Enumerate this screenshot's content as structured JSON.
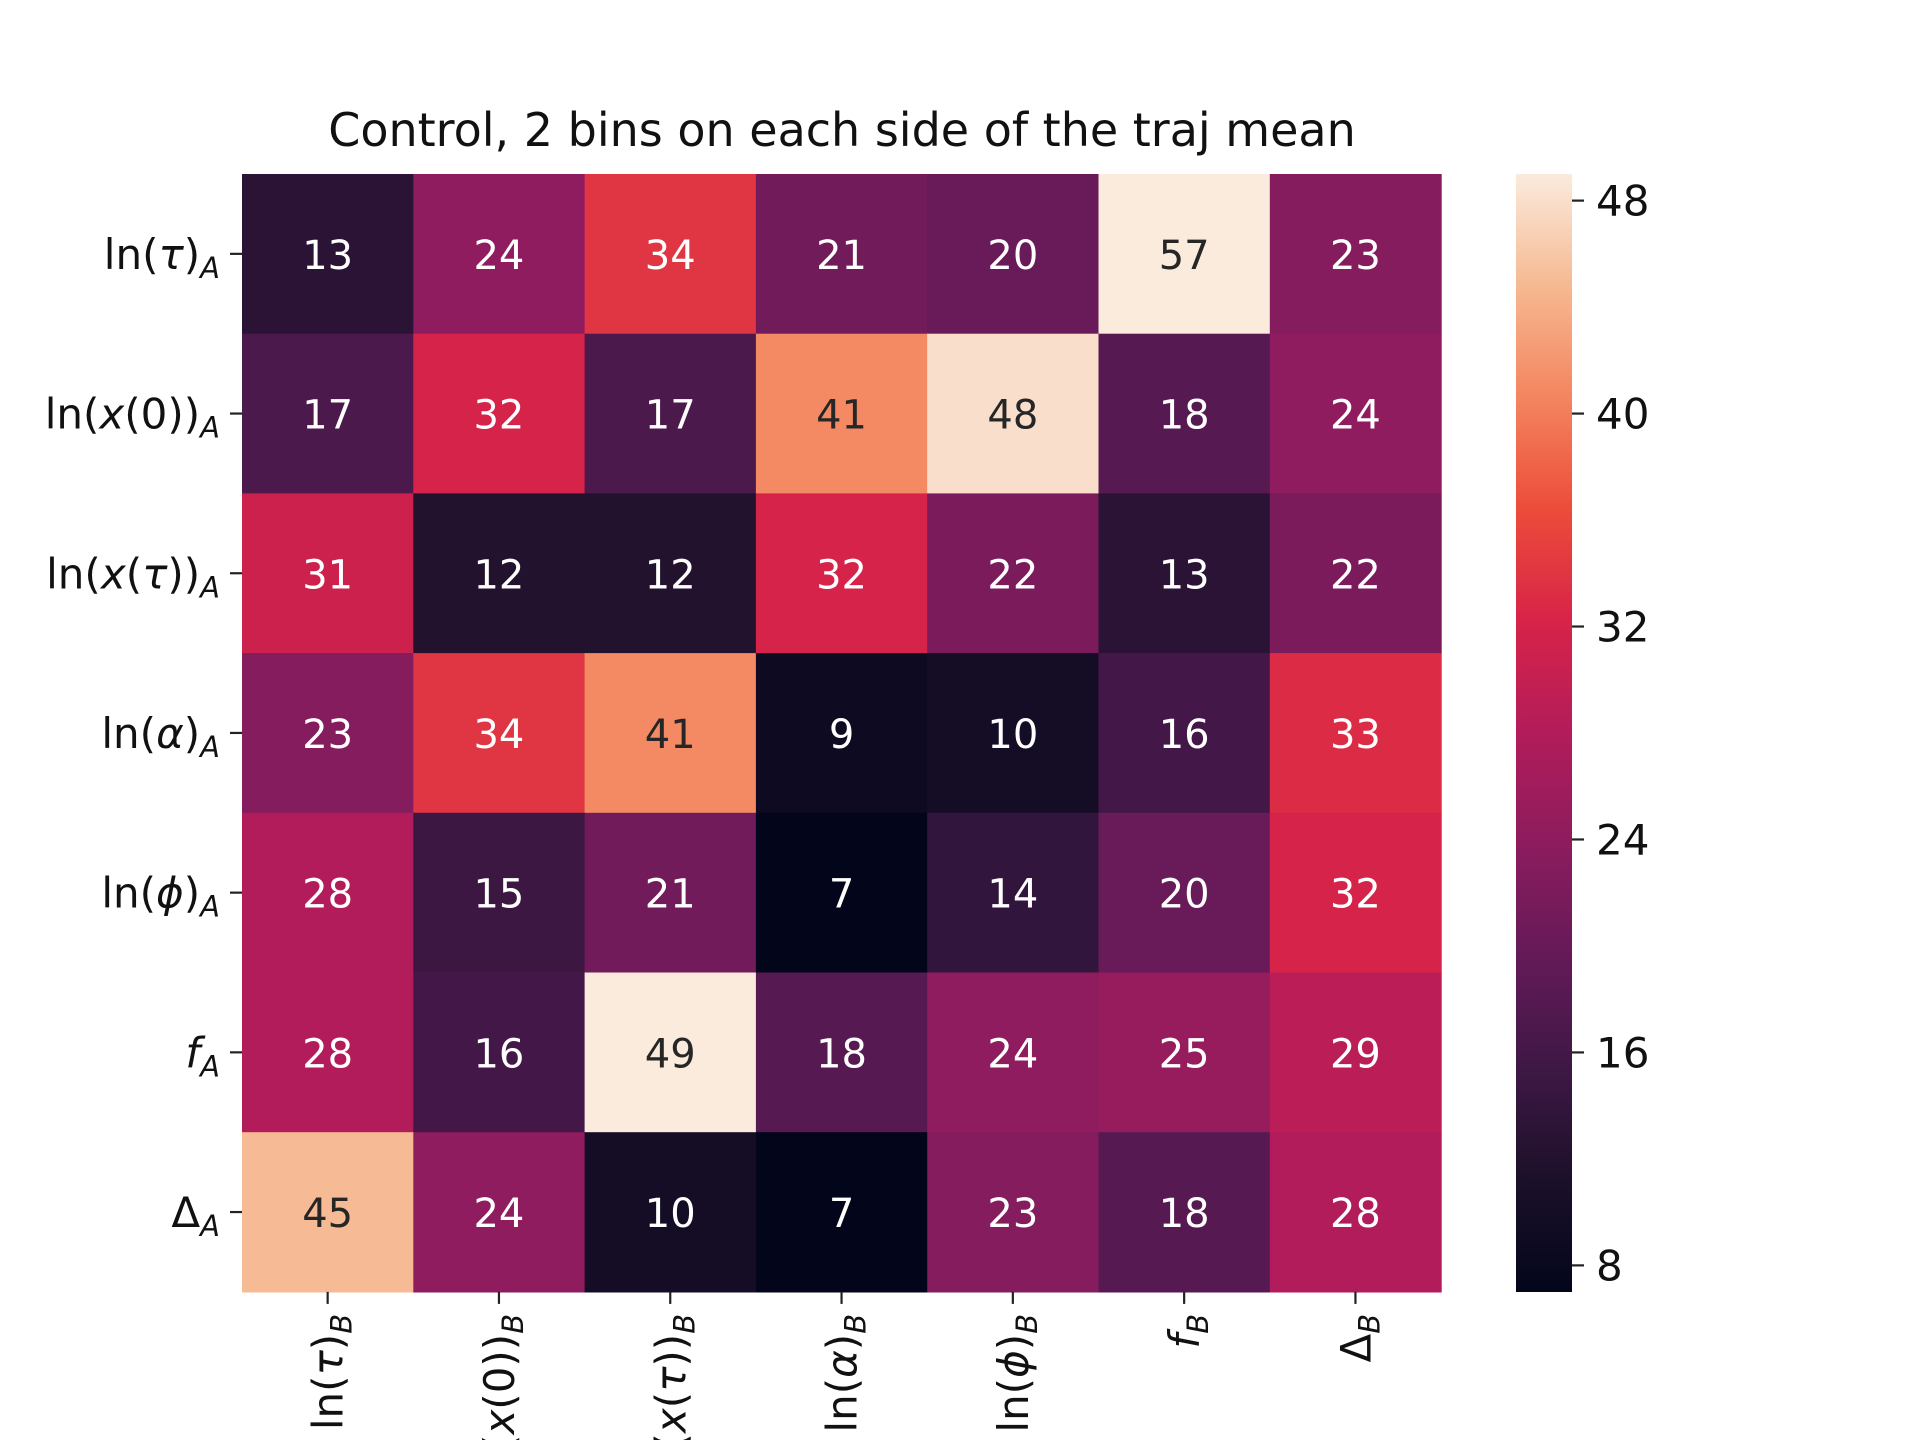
{
  "chart_data": {
    "type": "heatmap",
    "title": "Control, 2 bins on each side of the traj mean",
    "row_labels": [
      {
        "base": "ln(",
        "sym": "τ",
        "close": ")",
        "sub": "A"
      },
      {
        "base": "ln(",
        "sym": "x",
        "mid": "(0))",
        "sub": "A"
      },
      {
        "base": "ln(",
        "sym": "x",
        "mid": "(",
        "sym2": "τ",
        "close": "))",
        "sub": "A"
      },
      {
        "base": "ln(",
        "sym": "α",
        "close": ")",
        "sub": "A"
      },
      {
        "base": "ln(",
        "sym": "ϕ",
        "close": ")",
        "sub": "A"
      },
      {
        "sym": "f",
        "sub": "A"
      },
      {
        "base": "Δ",
        "sub": "A"
      }
    ],
    "col_labels": [
      {
        "base": "ln(",
        "sym": "τ",
        "close": ")",
        "sub": "B"
      },
      {
        "base": "ln(",
        "sym": "x",
        "mid": "(0))",
        "sub": "B"
      },
      {
        "base": "ln(",
        "sym": "x",
        "mid": "(",
        "sym2": "τ",
        "close": "))",
        "sub": "B"
      },
      {
        "base": "ln(",
        "sym": "α",
        "close": ")",
        "sub": "B"
      },
      {
        "base": "ln(",
        "sym": "ϕ",
        "close": ")",
        "sub": "B"
      },
      {
        "sym": "f",
        "sub": "B"
      },
      {
        "base": "Δ",
        "sub": "B"
      }
    ],
    "values": [
      [
        13,
        24,
        34,
        21,
        20,
        57,
        23
      ],
      [
        17,
        32,
        17,
        41,
        48,
        18,
        24
      ],
      [
        31,
        12,
        12,
        32,
        22,
        13,
        22
      ],
      [
        23,
        34,
        41,
        9,
        10,
        16,
        33
      ],
      [
        28,
        15,
        21,
        7,
        14,
        20,
        32
      ],
      [
        28,
        16,
        49,
        18,
        24,
        25,
        29
      ],
      [
        45,
        24,
        10,
        7,
        23,
        18,
        28
      ]
    ],
    "colormap": "rocket",
    "vmin": 7,
    "vmax": 49,
    "colorbar_ticks": [
      8,
      16,
      24,
      32,
      40,
      48
    ]
  }
}
